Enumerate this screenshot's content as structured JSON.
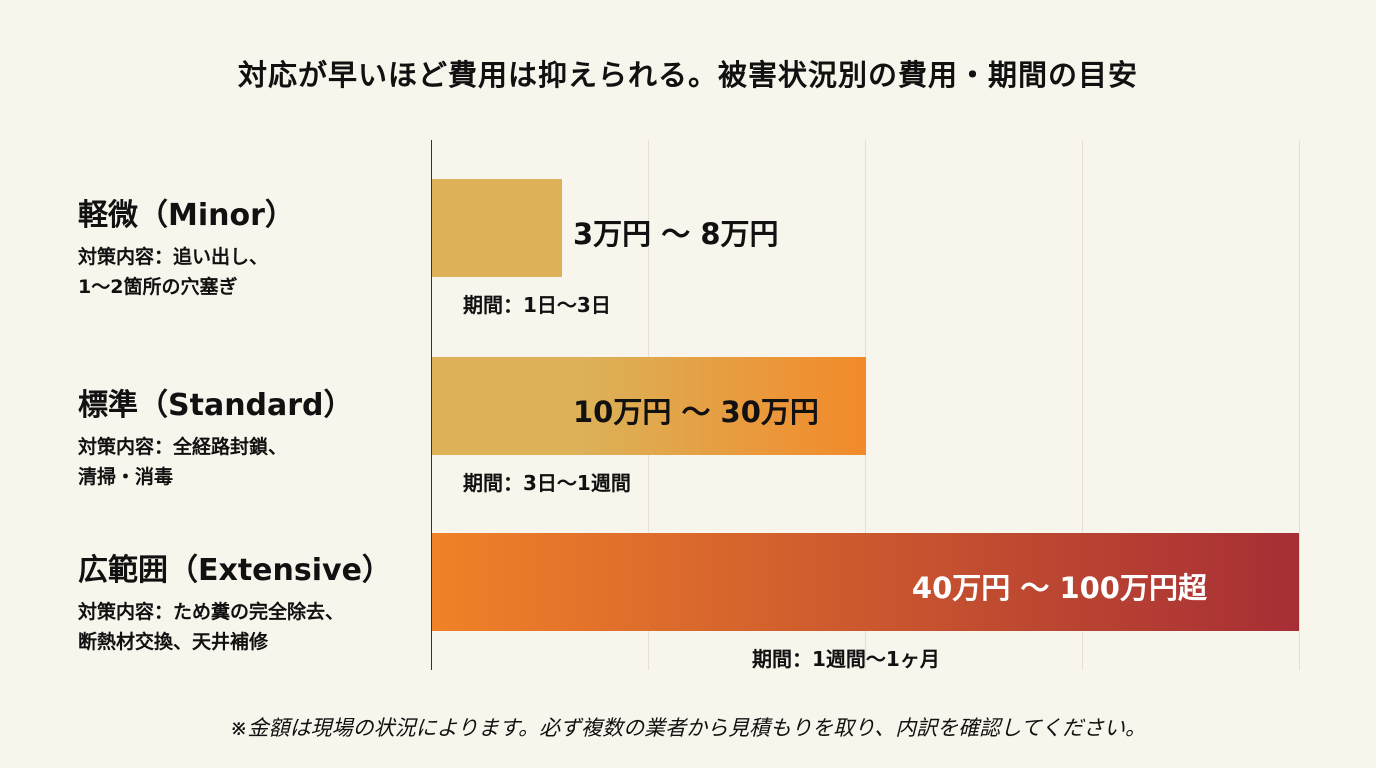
{
  "title": "対応が早いほど費用は抑えられる。被害状況別の費用・期間の目安",
  "note": "※金額は現場の状況によります。必ず複数の業者から見積もりを取り、内訳を確認してください。",
  "chart_data": {
    "type": "bar",
    "orientation": "horizontal",
    "grid": true,
    "categories": [
      "軽微（Minor）",
      "標準（Standard）",
      "広範囲（Extensive）"
    ],
    "items": [
      {
        "name": "軽微（Minor）",
        "desc_line1": "対策内容：追い出し、",
        "desc_line2": "1〜2箇所の穴塞ぎ",
        "cost_label": "3万円 〜 8万円",
        "period_label": "期間：1日〜3日",
        "relative_length": 0.15,
        "color_start": "#dcb158",
        "color_end": "#dcb158"
      },
      {
        "name": "標準（Standard）",
        "desc_line1": "対策内容：全経路封鎖、",
        "desc_line2": "清掃・消毒",
        "cost_label": "10万円 〜 30万円",
        "period_label": "期間：3日〜1週間",
        "relative_length": 0.5,
        "color_start": "#dcb158",
        "color_end": "#f28a2a"
      },
      {
        "name": "広範囲（Extensive）",
        "desc_line1": "対策内容：ため糞の完全除去、",
        "desc_line2": "断熱材交換、天井補修",
        "cost_label": "40万円 〜 100万円超",
        "period_label": "期間：1週間〜1ヶ月",
        "relative_length": 1.0,
        "color_start": "#f08228",
        "color_end": "#a62e35"
      }
    ]
  }
}
